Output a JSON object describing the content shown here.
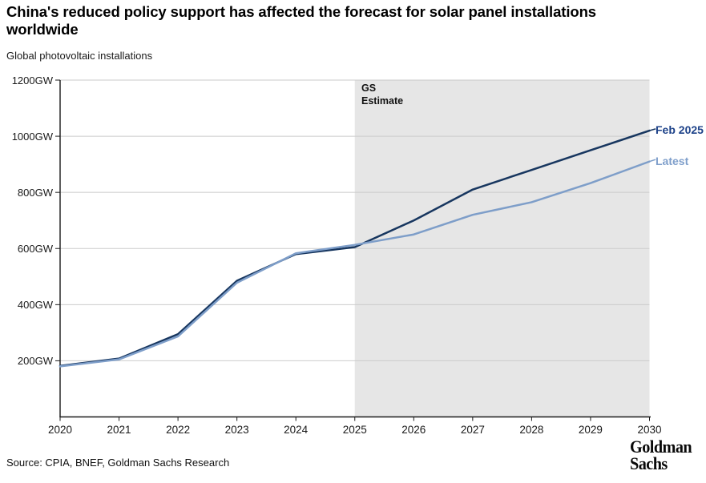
{
  "header": {
    "title": "China's reduced policy support has affected the forecast for solar panel installations worldwide",
    "subtitle": "Global photovoltaic installations"
  },
  "chart_data": {
    "type": "line",
    "title": "Global photovoltaic installations",
    "x": [
      2020,
      2021,
      2022,
      2023,
      2024,
      2025,
      2026,
      2027,
      2028,
      2029,
      2030
    ],
    "x_tick_labels": [
      "2020",
      "2021",
      "2022",
      "2023",
      "2024",
      "2025",
      "2026",
      "2027",
      "2028",
      "2029",
      "2030"
    ],
    "ylim": [
      0,
      1200
    ],
    "yticks": [
      200,
      400,
      600,
      800,
      1000,
      1200
    ],
    "ytick_suffix": "GW",
    "grid": "horizontal",
    "legend_position": "right-of-line-ends",
    "background": "#ffffff",
    "gridline_color": "#cbcbcb",
    "axis_color": "#1a1a1a",
    "series": [
      {
        "name": "Feb 2025",
        "color": "#17365f",
        "label_color": "#1d4289",
        "values": [
          182,
          208,
          295,
          485,
          580,
          605,
          700,
          810,
          880,
          950,
          1020
        ]
      },
      {
        "name": "Latest",
        "color": "#7e9ec9",
        "label_color": "#7f9fcb",
        "values": [
          180,
          205,
          287,
          478,
          583,
          613,
          650,
          720,
          765,
          833,
          910
        ]
      }
    ],
    "shaded_region": {
      "label": "GS\nEstimate",
      "x_start": 2025,
      "x_end": 2030,
      "color": "#e6e6e6"
    }
  },
  "footer": {
    "source": "Source: CPIA, BNEF, Goldman Sachs Research",
    "logo_line1": "Goldman",
    "logo_line2": "Sachs"
  }
}
